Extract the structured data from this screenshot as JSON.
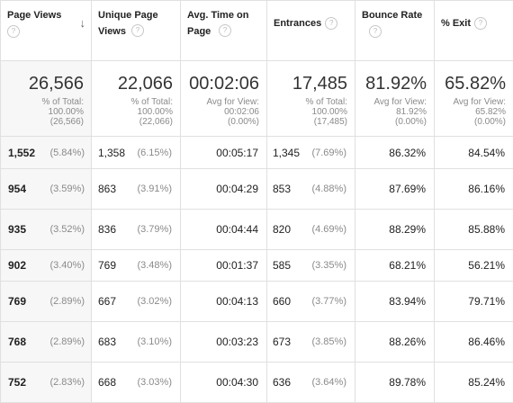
{
  "headers": [
    {
      "label": "Page Views",
      "sorted": true
    },
    {
      "label": "Unique Page Views"
    },
    {
      "label": "Avg. Time on Page"
    },
    {
      "label": "Entrances"
    },
    {
      "label": "Bounce Rate"
    },
    {
      "label": "% Exit"
    }
  ],
  "help_glyph": "?",
  "sort_glyph": "↓",
  "totals": [
    {
      "value": "26,566",
      "l1": "% of Total:",
      "l2": "100.00%",
      "l3": "(26,566)"
    },
    {
      "value": "22,066",
      "l1": "% of Total:",
      "l2": "100.00%",
      "l3": "(22,066)"
    },
    {
      "value": "00:02:06",
      "l1": "Avg for View:",
      "l2": "00:02:06",
      "l3": "(0.00%)"
    },
    {
      "value": "17,485",
      "l1": "% of Total:",
      "l2": "100.00%",
      "l3": "(17,485)"
    },
    {
      "value": "81.92%",
      "l1": "Avg for View:",
      "l2": "81.92%",
      "l3": "(0.00%)"
    },
    {
      "value": "65.82%",
      "l1": "Avg for View:",
      "l2": "65.82%",
      "l3": "(0.00%)"
    }
  ],
  "rows": [
    {
      "pv": "1,552",
      "pv_pct": "(5.84%)",
      "upv": "1,358",
      "upv_pct": "(6.15%)",
      "time": "00:05:17",
      "ent": "1,345",
      "ent_pct": "(7.69%)",
      "bounce": "86.32%",
      "exit": "84.54%"
    },
    {
      "pv": "954",
      "pv_pct": "(3.59%)",
      "upv": "863",
      "upv_pct": "(3.91%)",
      "time": "00:04:29",
      "ent": "853",
      "ent_pct": "(4.88%)",
      "bounce": "87.69%",
      "exit": "86.16%"
    },
    {
      "pv": "935",
      "pv_pct": "(3.52%)",
      "upv": "836",
      "upv_pct": "(3.79%)",
      "time": "00:04:44",
      "ent": "820",
      "ent_pct": "(4.69%)",
      "bounce": "88.29%",
      "exit": "85.88%"
    },
    {
      "pv": "902",
      "pv_pct": "(3.40%)",
      "upv": "769",
      "upv_pct": "(3.48%)",
      "time": "00:01:37",
      "ent": "585",
      "ent_pct": "(3.35%)",
      "bounce": "68.21%",
      "exit": "56.21%"
    },
    {
      "pv": "769",
      "pv_pct": "(2.89%)",
      "upv": "667",
      "upv_pct": "(3.02%)",
      "time": "00:04:13",
      "ent": "660",
      "ent_pct": "(3.77%)",
      "bounce": "83.94%",
      "exit": "79.71%"
    },
    {
      "pv": "768",
      "pv_pct": "(2.89%)",
      "upv": "683",
      "upv_pct": "(3.10%)",
      "time": "00:03:23",
      "ent": "673",
      "ent_pct": "(3.85%)",
      "bounce": "88.26%",
      "exit": "86.46%"
    },
    {
      "pv": "752",
      "pv_pct": "(2.83%)",
      "upv": "668",
      "upv_pct": "(3.03%)",
      "time": "00:04:30",
      "ent": "636",
      "ent_pct": "(3.64%)",
      "bounce": "89.78%",
      "exit": "85.24%"
    }
  ]
}
